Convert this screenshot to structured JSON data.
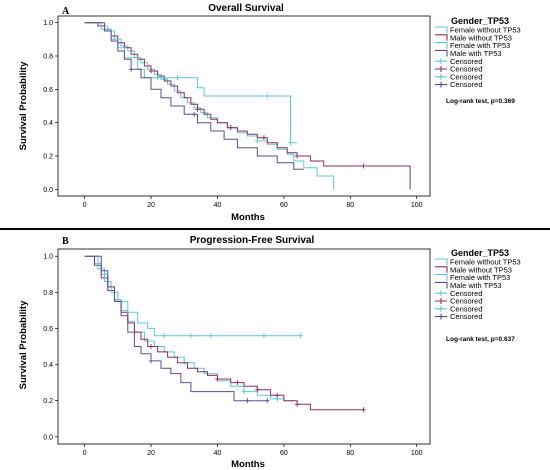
{
  "chart_data": [
    {
      "type": "line",
      "panel_label": "A",
      "title": "Overall Survival",
      "xlabel": "Months",
      "ylabel": "Survival Probability",
      "xlim": [
        -8,
        104
      ],
      "ylim": [
        -0.04,
        1.04
      ],
      "xticks": [
        "0",
        "20",
        "40",
        "60",
        "80",
        "100"
      ],
      "yticks": [
        "0.0",
        "0.2",
        "0.4",
        "0.6",
        "0.8",
        "1.0"
      ],
      "legend_title": "Gender_TP53",
      "legend_position": "right",
      "legend": [
        {
          "label": "Female without TP53",
          "color": "#5cc6d8",
          "glyph": "line"
        },
        {
          "label": "Male without TP53",
          "color": "#8c2d62",
          "glyph": "line"
        },
        {
          "label": "Female with TP53",
          "color": "#5cc6d8",
          "glyph": "line"
        },
        {
          "label": "Male with TP53",
          "color": "#5a4f96",
          "glyph": "line"
        },
        {
          "label": "Censored",
          "color": "#5cc6d8",
          "glyph": "plus"
        },
        {
          "label": "Censored",
          "color": "#8c2d62",
          "glyph": "plus"
        },
        {
          "label": "Censored",
          "color": "#5cc6d8",
          "glyph": "plus"
        },
        {
          "label": "Censored",
          "color": "#5a4f96",
          "glyph": "plus"
        }
      ],
      "test": "Log-rank test, p=0.369",
      "series": [
        {
          "color": "#5cc6d8",
          "x": [
            0,
            5,
            7,
            9,
            11,
            13,
            15,
            17,
            19,
            21,
            23,
            25,
            27,
            29,
            31,
            33,
            35,
            37,
            40,
            43,
            46,
            49,
            52,
            55,
            58,
            61,
            63,
            66,
            70,
            75
          ],
          "y": [
            1.0,
            0.98,
            0.95,
            0.9,
            0.86,
            0.83,
            0.79,
            0.76,
            0.72,
            0.69,
            0.66,
            0.63,
            0.59,
            0.55,
            0.52,
            0.49,
            0.46,
            0.43,
            0.4,
            0.37,
            0.34,
            0.32,
            0.29,
            0.27,
            0.24,
            0.21,
            0.17,
            0.13,
            0.08,
            0.0
          ],
          "censor_x": [
            24,
            36,
            44,
            52
          ]
        },
        {
          "color": "#8c2d62",
          "x": [
            0,
            4,
            6,
            8,
            10,
            12,
            14,
            16,
            18,
            20,
            22,
            24,
            26,
            28,
            30,
            32,
            34,
            36,
            38,
            40,
            43,
            46,
            49,
            52,
            55,
            58,
            61,
            64,
            68,
            72,
            98
          ],
          "y": [
            1.0,
            0.98,
            0.96,
            0.92,
            0.88,
            0.85,
            0.81,
            0.78,
            0.74,
            0.71,
            0.68,
            0.65,
            0.62,
            0.58,
            0.55,
            0.51,
            0.48,
            0.45,
            0.42,
            0.4,
            0.37,
            0.35,
            0.33,
            0.31,
            0.28,
            0.25,
            0.22,
            0.2,
            0.17,
            0.14,
            0.0
          ],
          "censor_x": [
            20,
            34,
            44,
            54,
            64,
            84
          ]
        },
        {
          "color": "#5cc6d8",
          "x": [
            0,
            5,
            8,
            10,
            12,
            16,
            18,
            34,
            36,
            62,
            64
          ],
          "y": [
            1.0,
            0.96,
            0.9,
            0.85,
            0.79,
            0.72,
            0.67,
            0.61,
            0.56,
            0.28,
            0.28
          ],
          "censor_x": [
            22,
            28,
            55,
            62
          ]
        },
        {
          "color": "#5a4f96",
          "x": [
            0,
            6,
            8,
            10,
            12,
            14,
            17,
            20,
            23,
            26,
            30,
            34,
            38,
            42,
            46,
            49,
            52,
            55,
            58,
            63,
            66
          ],
          "y": [
            1.0,
            0.95,
            0.89,
            0.83,
            0.78,
            0.72,
            0.67,
            0.6,
            0.55,
            0.5,
            0.45,
            0.4,
            0.35,
            0.3,
            0.25,
            0.25,
            0.2,
            0.2,
            0.16,
            0.12,
            0.12
          ],
          "censor_x": [
            14,
            33
          ]
        }
      ]
    },
    {
      "type": "line",
      "panel_label": "B",
      "title": "Progression-Free Survival",
      "xlabel": "Months",
      "ylabel": "Survival Probability",
      "xlim": [
        -8,
        104
      ],
      "ylim": [
        -0.04,
        1.04
      ],
      "xticks": [
        "0",
        "20",
        "40",
        "60",
        "80",
        "100"
      ],
      "yticks": [
        "0.0",
        "0.2",
        "0.4",
        "0.6",
        "0.8",
        "1.0"
      ],
      "legend_title": "Gender_TP53",
      "legend_position": "right",
      "legend": [
        {
          "label": "Female without TP53",
          "color": "#5cc6d8",
          "glyph": "line"
        },
        {
          "label": "Male without TP53",
          "color": "#8c2d62",
          "glyph": "line"
        },
        {
          "label": "Female with TP53",
          "color": "#5cc6d8",
          "glyph": "line"
        },
        {
          "label": "Male with TP53",
          "color": "#5a4f96",
          "glyph": "line"
        },
        {
          "label": "Censored",
          "color": "#5cc6d8",
          "glyph": "plus"
        },
        {
          "label": "Censored",
          "color": "#8c2d62",
          "glyph": "plus"
        },
        {
          "label": "Censored",
          "color": "#5cc6d8",
          "glyph": "plus"
        },
        {
          "label": "Censored",
          "color": "#5a4f96",
          "glyph": "plus"
        }
      ],
      "test": "Log-rank test, p=0.637",
      "series": [
        {
          "color": "#5cc6d8",
          "x": [
            0,
            3,
            5,
            7,
            9,
            11,
            13,
            15,
            18,
            21,
            24,
            27,
            30,
            33,
            36,
            40,
            44,
            48,
            52,
            56,
            60,
            63
          ],
          "y": [
            1.0,
            0.96,
            0.9,
            0.83,
            0.76,
            0.7,
            0.64,
            0.58,
            0.53,
            0.5,
            0.47,
            0.44,
            0.41,
            0.38,
            0.35,
            0.31,
            0.28,
            0.25,
            0.23,
            0.21,
            0.2,
            0.2
          ],
          "censor_x": [
            30,
            48,
            58
          ]
        },
        {
          "color": "#8c2d62",
          "x": [
            0,
            3,
            5,
            7,
            9,
            11,
            13,
            15,
            17,
            19,
            22,
            25,
            28,
            31,
            34,
            37,
            40,
            44,
            48,
            52,
            56,
            60,
            64,
            68,
            84
          ],
          "y": [
            1.0,
            0.95,
            0.88,
            0.81,
            0.75,
            0.69,
            0.63,
            0.58,
            0.54,
            0.5,
            0.47,
            0.44,
            0.41,
            0.38,
            0.36,
            0.34,
            0.32,
            0.3,
            0.28,
            0.26,
            0.23,
            0.2,
            0.18,
            0.15,
            0.15
          ],
          "censor_x": [
            20,
            40,
            46,
            52,
            58,
            64,
            84
          ]
        },
        {
          "color": "#5cc6d8",
          "x": [
            0,
            4,
            6,
            8,
            10,
            13,
            16,
            19,
            21,
            65
          ],
          "y": [
            1.0,
            0.93,
            0.86,
            0.8,
            0.75,
            0.69,
            0.63,
            0.6,
            0.56,
            0.56
          ],
          "censor_x": [
            24,
            32,
            38,
            54,
            65
          ]
        },
        {
          "color": "#5a4f96",
          "x": [
            0,
            5,
            7,
            9,
            11,
            13,
            15,
            17,
            20,
            23,
            26,
            29,
            32,
            40,
            45,
            55
          ],
          "y": [
            1.0,
            0.92,
            0.83,
            0.75,
            0.67,
            0.58,
            0.5,
            0.46,
            0.42,
            0.38,
            0.35,
            0.3,
            0.25,
            0.25,
            0.2,
            0.2
          ],
          "censor_x": [
            20,
            49,
            55
          ]
        }
      ]
    }
  ]
}
